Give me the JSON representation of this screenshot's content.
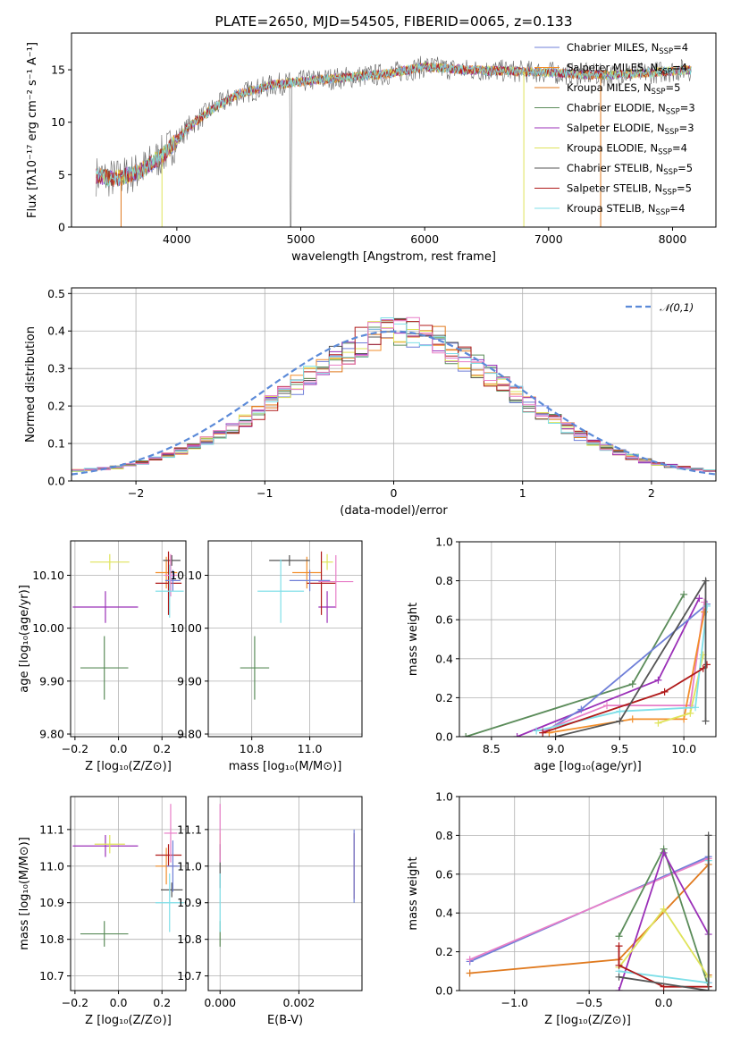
{
  "figure_title": "PLATE=2650, MJD=54505, FIBERID=0065, z=0.133",
  "palette": [
    "#6f7fd8",
    "#f28e2b",
    "#e07a1f",
    "#5b8c5a",
    "#9b30b8",
    "#dfe35a",
    "#555555",
    "#b01a1a",
    "#7fdfe8",
    "#e87fc8"
  ],
  "chart_data": [
    {
      "id": "spectrum",
      "type": "line",
      "title": "PLATE=2650, MJD=54505, FIBERID=0065, z=0.133",
      "xlabel": "wavelength [Angstrom, rest frame]",
      "ylabel": "Flux [fλ10⁻¹⁷ erg cm⁻² s⁻¹ A⁻¹]",
      "xlim": [
        3150,
        8350
      ],
      "ylim": [
        0,
        18.5
      ],
      "xticks": [
        4000,
        5000,
        6000,
        7000,
        8000
      ],
      "yticks": [
        0,
        5,
        10,
        15
      ],
      "grid": false,
      "legend_position": "right",
      "continuum_x": [
        3350,
        3500,
        3700,
        3900,
        4100,
        4300,
        4500,
        4800,
        5100,
        5400,
        5700,
        6000,
        6300,
        6600,
        6900,
        7200,
        7500,
        7800,
        8100
      ],
      "continuum_y": [
        4.9,
        4.6,
        5.3,
        7.0,
        9.6,
        11.4,
        12.7,
        13.6,
        14.0,
        14.3,
        14.6,
        15.3,
        15.0,
        14.9,
        14.8,
        14.6,
        14.5,
        14.7,
        15.0
      ],
      "legend": [
        {
          "label": "Chabrier MILES, N_SSP=4",
          "name": "Chabrier MILES, N",
          "sub": "SSP",
          "tail": "=4",
          "color": "#6f7fd8"
        },
        {
          "label": "Salpeter MILES, N_SSP=4",
          "name": "Salpeter MILES, N",
          "sub": "SSP",
          "tail": "=4",
          "color": "#f28e2b"
        },
        {
          "label": "Kroupa MILES, N_SSP=5",
          "name": "Kroupa MILES, N",
          "sub": "SSP",
          "tail": "=5",
          "color": "#e07a1f"
        },
        {
          "label": "Chabrier ELODIE, N_SSP=3",
          "name": "Chabrier ELODIE, N",
          "sub": "SSP",
          "tail": "=3",
          "color": "#5b8c5a"
        },
        {
          "label": "Salpeter ELODIE, N_SSP=3",
          "name": "Salpeter ELODIE, N",
          "sub": "SSP",
          "tail": "=3",
          "color": "#9b30b8"
        },
        {
          "label": "Kroupa ELODIE, N_SSP=4",
          "name": "Kroupa ELODIE, N",
          "sub": "SSP",
          "tail": "=4",
          "color": "#dfe35a"
        },
        {
          "label": "Chabrier STELIB, N_SSP=5",
          "name": "Chabrier STELIB, N",
          "sub": "SSP",
          "tail": "=5",
          "color": "#555555"
        },
        {
          "label": "Salpeter STELIB, N_SSP=5",
          "name": "Salpeter STELIB, N",
          "sub": "SSP",
          "tail": "=5",
          "color": "#b01a1a"
        },
        {
          "label": "Kroupa STELIB, N_SSP=4",
          "name": "Kroupa STELIB, N",
          "sub": "SSP",
          "tail": "=4",
          "color": "#7fdfe8"
        }
      ]
    },
    {
      "id": "residuals",
      "type": "histogram",
      "xlabel": "(data-model)/error",
      "ylabel": "Normed distribution",
      "xlim": [
        -2.5,
        2.5
      ],
      "ylim": [
        0,
        0.515
      ],
      "xticks": [
        -2,
        -1,
        0,
        1,
        2
      ],
      "yticks": [
        0.0,
        0.1,
        0.2,
        0.3,
        0.4,
        0.5
      ],
      "grid": true,
      "bin_width": 0.1,
      "bin_start": -2.5,
      "base_heights": [
        0.028,
        0.031,
        0.033,
        0.036,
        0.042,
        0.049,
        0.058,
        0.069,
        0.08,
        0.092,
        0.107,
        0.124,
        0.142,
        0.162,
        0.184,
        0.206,
        0.23,
        0.254,
        0.278,
        0.303,
        0.327,
        0.349,
        0.37,
        0.386,
        0.399,
        0.405,
        0.4,
        0.389,
        0.372,
        0.351,
        0.328,
        0.304,
        0.279,
        0.254,
        0.229,
        0.205,
        0.182,
        0.16,
        0.14,
        0.121,
        0.104,
        0.089,
        0.076,
        0.064,
        0.054,
        0.046,
        0.04,
        0.035,
        0.031,
        0.028
      ],
      "legend": [
        {
          "label": "𝒩(0,1)",
          "color": "#5b8ad8"
        }
      ]
    },
    {
      "id": "age_vs_Z",
      "type": "errorbar",
      "xlabel": "Z [log₁₀(Z/Z⊙)]",
      "ylabel": "age  [log₁₀(age/yr)]",
      "xlim": [
        -0.22,
        0.31
      ],
      "ylim": [
        9.795,
        10.165
      ],
      "xticks": [
        -0.2,
        0.0,
        0.2
      ],
      "yticks": [
        9.8,
        9.9,
        10.0,
        10.1
      ],
      "grid": true,
      "points": [
        {
          "x": -0.065,
          "y": 9.925,
          "xerr": 0.11,
          "yerr": 0.06,
          "color": "#5b8c5a"
        },
        {
          "x": -0.06,
          "y": 10.04,
          "xerr": 0.15,
          "yerr": 0.03,
          "color": "#9b30b8"
        },
        {
          "x": -0.04,
          "y": 10.125,
          "xerr": 0.09,
          "yerr": 0.015,
          "color": "#dfe35a"
        },
        {
          "x": 0.22,
          "y": 10.105,
          "xerr": 0.05,
          "yerr": 0.03,
          "color": "#f28e2b"
        },
        {
          "x": 0.245,
          "y": 10.128,
          "xerr": 0.04,
          "yerr": 0.01,
          "color": "#555555"
        },
        {
          "x": 0.23,
          "y": 10.085,
          "xerr": 0.06,
          "yerr": 0.06,
          "color": "#b01a1a"
        },
        {
          "x": 0.25,
          "y": 10.09,
          "xerr": 0.035,
          "yerr": 0.02,
          "color": "#6f7fd8"
        },
        {
          "x": 0.24,
          "y": 10.1,
          "xerr": 0.03,
          "yerr": 0.04,
          "color": "#e87fc8"
        },
        {
          "x": 0.235,
          "y": 10.07,
          "xerr": 0.065,
          "yerr": 0.05,
          "color": "#7fdfe8"
        }
      ]
    },
    {
      "id": "age_vs_mass",
      "type": "errorbar",
      "xlabel": "mass [log₁₀(M/M⊙)]",
      "ylabel": "",
      "xlim": [
        10.65,
        11.18
      ],
      "ylim": [
        9.795,
        10.165
      ],
      "xticks": [
        10.8,
        11.0
      ],
      "yticks": [
        9.8,
        9.9,
        10.0,
        10.1
      ],
      "grid": true,
      "points": [
        {
          "x": 10.81,
          "y": 9.925,
          "xerr": 0.05,
          "yerr": 0.06,
          "color": "#5b8c5a"
        },
        {
          "x": 11.06,
          "y": 10.04,
          "xerr": 0.03,
          "yerr": 0.03,
          "color": "#9b30b8"
        },
        {
          "x": 11.06,
          "y": 10.125,
          "xerr": 0.02,
          "yerr": 0.015,
          "color": "#dfe35a"
        },
        {
          "x": 10.99,
          "y": 10.105,
          "xerr": 0.05,
          "yerr": 0.03,
          "color": "#f28e2b"
        },
        {
          "x": 10.93,
          "y": 10.128,
          "xerr": 0.07,
          "yerr": 0.01,
          "color": "#555555"
        },
        {
          "x": 11.04,
          "y": 10.085,
          "xerr": 0.05,
          "yerr": 0.06,
          "color": "#b01a1a"
        },
        {
          "x": 11.0,
          "y": 10.09,
          "xerr": 0.07,
          "yerr": 0.02,
          "color": "#6f7fd8"
        },
        {
          "x": 11.09,
          "y": 10.088,
          "xerr": 0.06,
          "yerr": 0.05,
          "color": "#e87fc8"
        },
        {
          "x": 10.9,
          "y": 10.07,
          "xerr": 0.08,
          "yerr": 0.06,
          "color": "#7fdfe8"
        }
      ]
    },
    {
      "id": "weight_vs_age",
      "type": "line",
      "xlabel": "age  [log₁₀(age/yr)]",
      "ylabel": "mass weight",
      "xlim": [
        8.25,
        10.25
      ],
      "ylim": [
        0,
        1.0
      ],
      "xticks": [
        8.5,
        9.0,
        9.5,
        10.0
      ],
      "yticks": [
        0.0,
        0.2,
        0.4,
        0.6,
        0.8,
        1.0
      ],
      "grid": true,
      "series": [
        {
          "color": "#5b8c5a",
          "x": [
            8.3,
            9.6,
            10.0
          ],
          "y": [
            0.0,
            0.27,
            0.73
          ]
        },
        {
          "color": "#9b30b8",
          "x": [
            8.7,
            9.8,
            10.12
          ],
          "y": [
            0.0,
            0.29,
            0.71
          ]
        },
        {
          "color": "#6f7fd8",
          "x": [
            8.9,
            9.2,
            10.18
          ],
          "y": [
            0.02,
            0.14,
            0.68
          ]
        },
        {
          "color": "#e87fc8",
          "x": [
            8.9,
            9.4,
            10.05,
            10.16
          ],
          "y": [
            0.03,
            0.16,
            0.16,
            0.69
          ]
        },
        {
          "color": "#f28e2b",
          "x": [
            8.95,
            9.6,
            10.0,
            10.16
          ],
          "y": [
            0.02,
            0.09,
            0.09,
            0.64
          ]
        },
        {
          "color": "#dfe35a",
          "x": [
            9.8,
            10.05,
            10.15
          ],
          "y": [
            0.07,
            0.12,
            0.42
          ]
        },
        {
          "color": "#7fdfe8",
          "x": [
            8.85,
            9.5,
            10.09,
            10.18
          ],
          "y": [
            0.03,
            0.13,
            0.15,
            0.67
          ]
        },
        {
          "color": "#b01a1a",
          "x": [
            8.9,
            9.85,
            10.15,
            10.18
          ],
          "y": [
            0.02,
            0.23,
            0.35,
            0.37
          ]
        },
        {
          "color": "#555555",
          "x": [
            9.0,
            9.5,
            10.17,
            10.17
          ],
          "y": [
            0.0,
            0.08,
            0.8,
            0.08
          ]
        }
      ]
    },
    {
      "id": "mass_vs_Z",
      "type": "errorbar",
      "xlabel": "Z [log₁₀(Z/Z⊙)]",
      "ylabel": "mass [log₁₀(M/M⊙)]",
      "xlim": [
        -0.22,
        0.31
      ],
      "ylim": [
        10.66,
        11.19
      ],
      "xticks": [
        -0.2,
        0.0,
        0.2
      ],
      "yticks": [
        10.7,
        10.8,
        10.9,
        11.0,
        11.1
      ],
      "grid": true,
      "points": [
        {
          "x": -0.065,
          "y": 10.815,
          "xerr": 0.11,
          "yerr": 0.035,
          "color": "#5b8c5a"
        },
        {
          "x": -0.06,
          "y": 11.055,
          "xerr": 0.15,
          "yerr": 0.03,
          "color": "#9b30b8"
        },
        {
          "x": -0.04,
          "y": 11.06,
          "xerr": 0.07,
          "yerr": 0.025,
          "color": "#dfe35a"
        },
        {
          "x": 0.22,
          "y": 11.0,
          "xerr": 0.05,
          "yerr": 0.05,
          "color": "#f28e2b"
        },
        {
          "x": 0.245,
          "y": 10.935,
          "xerr": 0.05,
          "yerr": 0.02,
          "color": "#555555"
        },
        {
          "x": 0.23,
          "y": 11.03,
          "xerr": 0.06,
          "yerr": 0.03,
          "color": "#b01a1a"
        },
        {
          "x": 0.25,
          "y": 11.0,
          "xerr": 0.03,
          "yerr": 0.07,
          "color": "#6f7fd8"
        },
        {
          "x": 0.24,
          "y": 11.09,
          "xerr": 0.03,
          "yerr": 0.08,
          "color": "#e87fc8"
        },
        {
          "x": 0.235,
          "y": 10.9,
          "xerr": 0.065,
          "yerr": 0.08,
          "color": "#7fdfe8"
        }
      ]
    },
    {
      "id": "mass_vs_EBV",
      "type": "errorbar",
      "xlabel": "E(B-V)",
      "ylabel": "",
      "xlim": [
        -0.0003,
        0.0036
      ],
      "ylim": [
        10.66,
        11.19
      ],
      "xticks": [
        0.0,
        0.002
      ],
      "yticks": [
        10.7,
        10.8,
        10.9,
        11.0,
        11.1
      ],
      "xtick_labels": [
        "0.000",
        "0.002"
      ],
      "grid": true,
      "points": [
        {
          "x": 0.0,
          "y": 10.815,
          "xerr": 0.0,
          "yerr": 0.035,
          "color": "#5b8c5a"
        },
        {
          "x": 0.0,
          "y": 11.06,
          "xerr": 0.0,
          "yerr": 0.03,
          "color": "#dfe35a"
        },
        {
          "x": 0.0,
          "y": 11.0,
          "xerr": 0.0,
          "yerr": 0.06,
          "color": "#555555"
        },
        {
          "x": 0.0,
          "y": 11.09,
          "xerr": 0.0,
          "yerr": 0.08,
          "color": "#e87fc8"
        },
        {
          "x": 0.0,
          "y": 10.9,
          "xerr": 0.0,
          "yerr": 0.08,
          "color": "#7fdfe8"
        },
        {
          "x": 0.0034,
          "y": 11.0,
          "xerr": 0.0,
          "yerr": 0.09,
          "color": "#b01a1a"
        },
        {
          "x": 0.0034,
          "y": 11.0,
          "xerr": 0.0,
          "yerr": 0.1,
          "color": "#6f7fd8"
        }
      ]
    },
    {
      "id": "weight_vs_Z",
      "type": "line",
      "xlabel": "Z [log₁₀(Z/Z⊙)]",
      "ylabel": "mass weight",
      "xlim": [
        -1.37,
        0.35
      ],
      "ylim": [
        0,
        1.0
      ],
      "xticks": [
        -1.0,
        -0.5,
        0.0
      ],
      "yticks": [
        0.0,
        0.2,
        0.4,
        0.6,
        0.8,
        1.0
      ],
      "grid": true,
      "series": [
        {
          "color": "#6f7fd8",
          "x": [
            -1.3,
            0.3,
            0.3
          ],
          "y": [
            0.15,
            0.69,
            0.04
          ]
        },
        {
          "color": "#e87fc8",
          "x": [
            -1.3,
            0.3,
            0.3
          ],
          "y": [
            0.16,
            0.68,
            0.04
          ]
        },
        {
          "color": "#e07a1f",
          "x": [
            -1.3,
            -0.3,
            0.3,
            0.3
          ],
          "y": [
            0.09,
            0.16,
            0.65,
            0.08
          ]
        },
        {
          "color": "#5b8c5a",
          "x": [
            -0.3,
            0.0,
            0.3
          ],
          "y": [
            0.28,
            0.73,
            0.02
          ]
        },
        {
          "color": "#9b30b8",
          "x": [
            -0.3,
            0.0,
            0.3
          ],
          "y": [
            0.0,
            0.71,
            0.29
          ]
        },
        {
          "color": "#dfe35a",
          "x": [
            -0.3,
            0.0,
            0.3
          ],
          "y": [
            0.12,
            0.42,
            0.07
          ]
        },
        {
          "color": "#7fdfe8",
          "x": [
            -0.3,
            0.3,
            0.3
          ],
          "y": [
            0.1,
            0.04,
            0.67
          ]
        },
        {
          "color": "#b01a1a",
          "x": [
            -0.3,
            -0.3,
            0.0,
            0.3
          ],
          "y": [
            0.23,
            0.13,
            0.02,
            0.02
          ]
        },
        {
          "color": "#555555",
          "x": [
            -0.3,
            0.3,
            0.3
          ],
          "y": [
            0.07,
            0.0,
            0.8
          ]
        }
      ]
    }
  ]
}
